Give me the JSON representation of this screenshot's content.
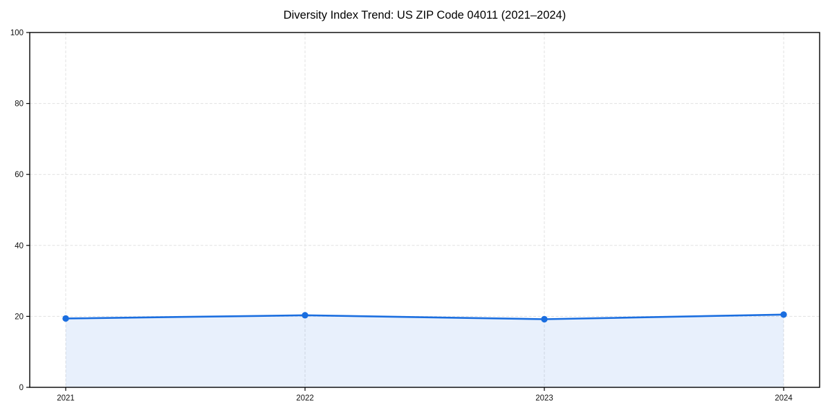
{
  "chart_data": {
    "type": "line",
    "title": "Diversity Index Trend: US ZIP Code 04011 (2021–2024)",
    "x": [
      "2021",
      "2022",
      "2023",
      "2024"
    ],
    "series": [
      {
        "name": "Diversity Index",
        "values": [
          19.4,
          20.3,
          19.2,
          20.5
        ]
      }
    ],
    "xlabel": "",
    "ylabel": "",
    "ylim": [
      0,
      100
    ],
    "yticks": [
      0,
      20,
      40,
      60,
      80,
      100
    ],
    "grid": {
      "visible": true,
      "style": "dashed",
      "axes": "both"
    },
    "legend_position": "none",
    "marker": "circle",
    "area_fill": true,
    "colors": {
      "line": "#1a6ee0",
      "fill": "#1a6ee0",
      "fill_opacity": 0.1,
      "grid": "#e1e1e1",
      "axis": "#000000",
      "text": "#111111"
    }
  }
}
